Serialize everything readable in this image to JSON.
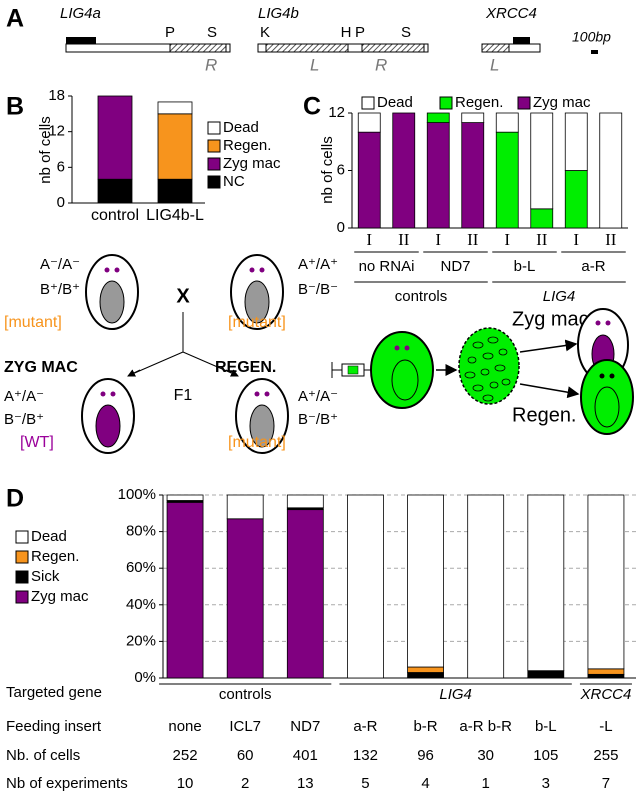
{
  "panel_labels": [
    "A",
    "B",
    "C",
    "D"
  ],
  "gene_map": {
    "genes": [
      "LIG4a",
      "LIG4b",
      "XRCC4"
    ],
    "sites": [
      "P",
      "S",
      "K",
      "H",
      "P",
      "S"
    ],
    "regions": [
      "R",
      "L",
      "R",
      "L"
    ],
    "scale": "100bp"
  },
  "cross": {
    "parent1": [
      "A⁻/A⁻",
      "B⁺/B⁺"
    ],
    "phenotype1": "[mutant]",
    "cross_sign": "X",
    "parent2": [
      "A⁺/A⁺",
      "B⁻/B⁻"
    ],
    "phenotype2": "[mutant]",
    "outcomes": [
      "ZYG MAC",
      "REGEN."
    ],
    "generation": "F1",
    "offspring1": [
      "A⁺/A⁻",
      "B⁻/B⁺"
    ],
    "offspring1_phenotype": "[WT]",
    "offspring2": [
      "A⁺/A⁻",
      "B⁻/B⁺"
    ],
    "offspring2_phenotype": "[mutant]"
  },
  "injection": {
    "outcomes": [
      "Zyg mac",
      "Regen."
    ]
  },
  "chart_data": [
    {
      "type": "bar",
      "stacked": true,
      "ylabel": "nb of cells",
      "categories": [
        "control",
        "LIG4b-L"
      ],
      "ylim": [
        0,
        18
      ],
      "yticks": [
        0,
        6,
        12,
        18
      ],
      "legend": "right",
      "series": [
        {
          "name": "NC",
          "color": "#000000",
          "values": [
            4,
            4
          ]
        },
        {
          "name": "Zyg mac",
          "color": "#800080",
          "values": [
            14,
            0
          ]
        },
        {
          "name": "Regen.",
          "color": "#f7941d",
          "values": [
            0,
            11
          ]
        },
        {
          "name": "Dead",
          "color": "#ffffff",
          "values": [
            0,
            2
          ]
        }
      ]
    },
    {
      "type": "bar",
      "stacked": true,
      "ylabel": "nb of cells",
      "categories": [
        "I",
        "II",
        "I",
        "II",
        "I",
        "II",
        "I",
        "II"
      ],
      "groups": [
        "no RNAi",
        "ND7",
        "b-L",
        "a-R"
      ],
      "supergroups": [
        "controls",
        "LIG4"
      ],
      "ylim": [
        0,
        12
      ],
      "yticks": [
        0,
        6,
        12
      ],
      "legend": "top",
      "series": [
        {
          "name": "Zyg mac",
          "color": "#800080",
          "values": [
            10,
            12,
            11,
            11,
            0,
            0,
            0,
            0
          ]
        },
        {
          "name": "Regen.",
          "color": "#00ee00",
          "values": [
            0,
            0,
            1,
            0,
            10,
            2,
            6,
            0
          ]
        },
        {
          "name": "Dead",
          "color": "#ffffff",
          "values": [
            2,
            0,
            0,
            1,
            2,
            10,
            6,
            12
          ]
        }
      ]
    },
    {
      "type": "bar",
      "stacked": true,
      "categories": [
        "none",
        "ICL7",
        "ND7",
        "a-R",
        "b-R",
        "a-R b-R",
        "b-L",
        "-L"
      ],
      "ylim": [
        0,
        100
      ],
      "grid": true,
      "legend": "left",
      "yticks": [
        {
          "value": 0,
          "label": "0%"
        },
        {
          "value": 20,
          "label": "20%"
        },
        {
          "value": 40,
          "label": "40%"
        },
        {
          "value": 60,
          "label": "60%"
        },
        {
          "value": 80,
          "label": "80%"
        },
        {
          "value": 100,
          "label": "100%"
        }
      ],
      "series": [
        {
          "name": "Zyg mac",
          "color": "#800080",
          "values": [
            96,
            87,
            92,
            0,
            0,
            0,
            0,
            0
          ]
        },
        {
          "name": "Sick",
          "color": "#000000",
          "values": [
            1,
            0,
            1,
            0,
            3,
            0,
            4,
            2
          ]
        },
        {
          "name": "Regen.",
          "color": "#f7941d",
          "values": [
            0,
            0,
            0,
            0,
            3,
            0,
            0,
            3
          ]
        },
        {
          "name": "Dead",
          "color": "#ffffff",
          "values": [
            3,
            13,
            7,
            100,
            94,
            100,
            96,
            95
          ]
        }
      ]
    }
  ],
  "table": {
    "row_labels": [
      "Targeted gene",
      "Feeding insert",
      "Nb. of cells",
      "Nb of experiments"
    ],
    "targeted_gene": [
      "controls",
      "LIG4",
      "XRCC4"
    ],
    "nb_cells": [
      252,
      60,
      401,
      132,
      96,
      30,
      105,
      255
    ],
    "nb_experiments": [
      10,
      2,
      13,
      5,
      4,
      1,
      3,
      7
    ]
  }
}
